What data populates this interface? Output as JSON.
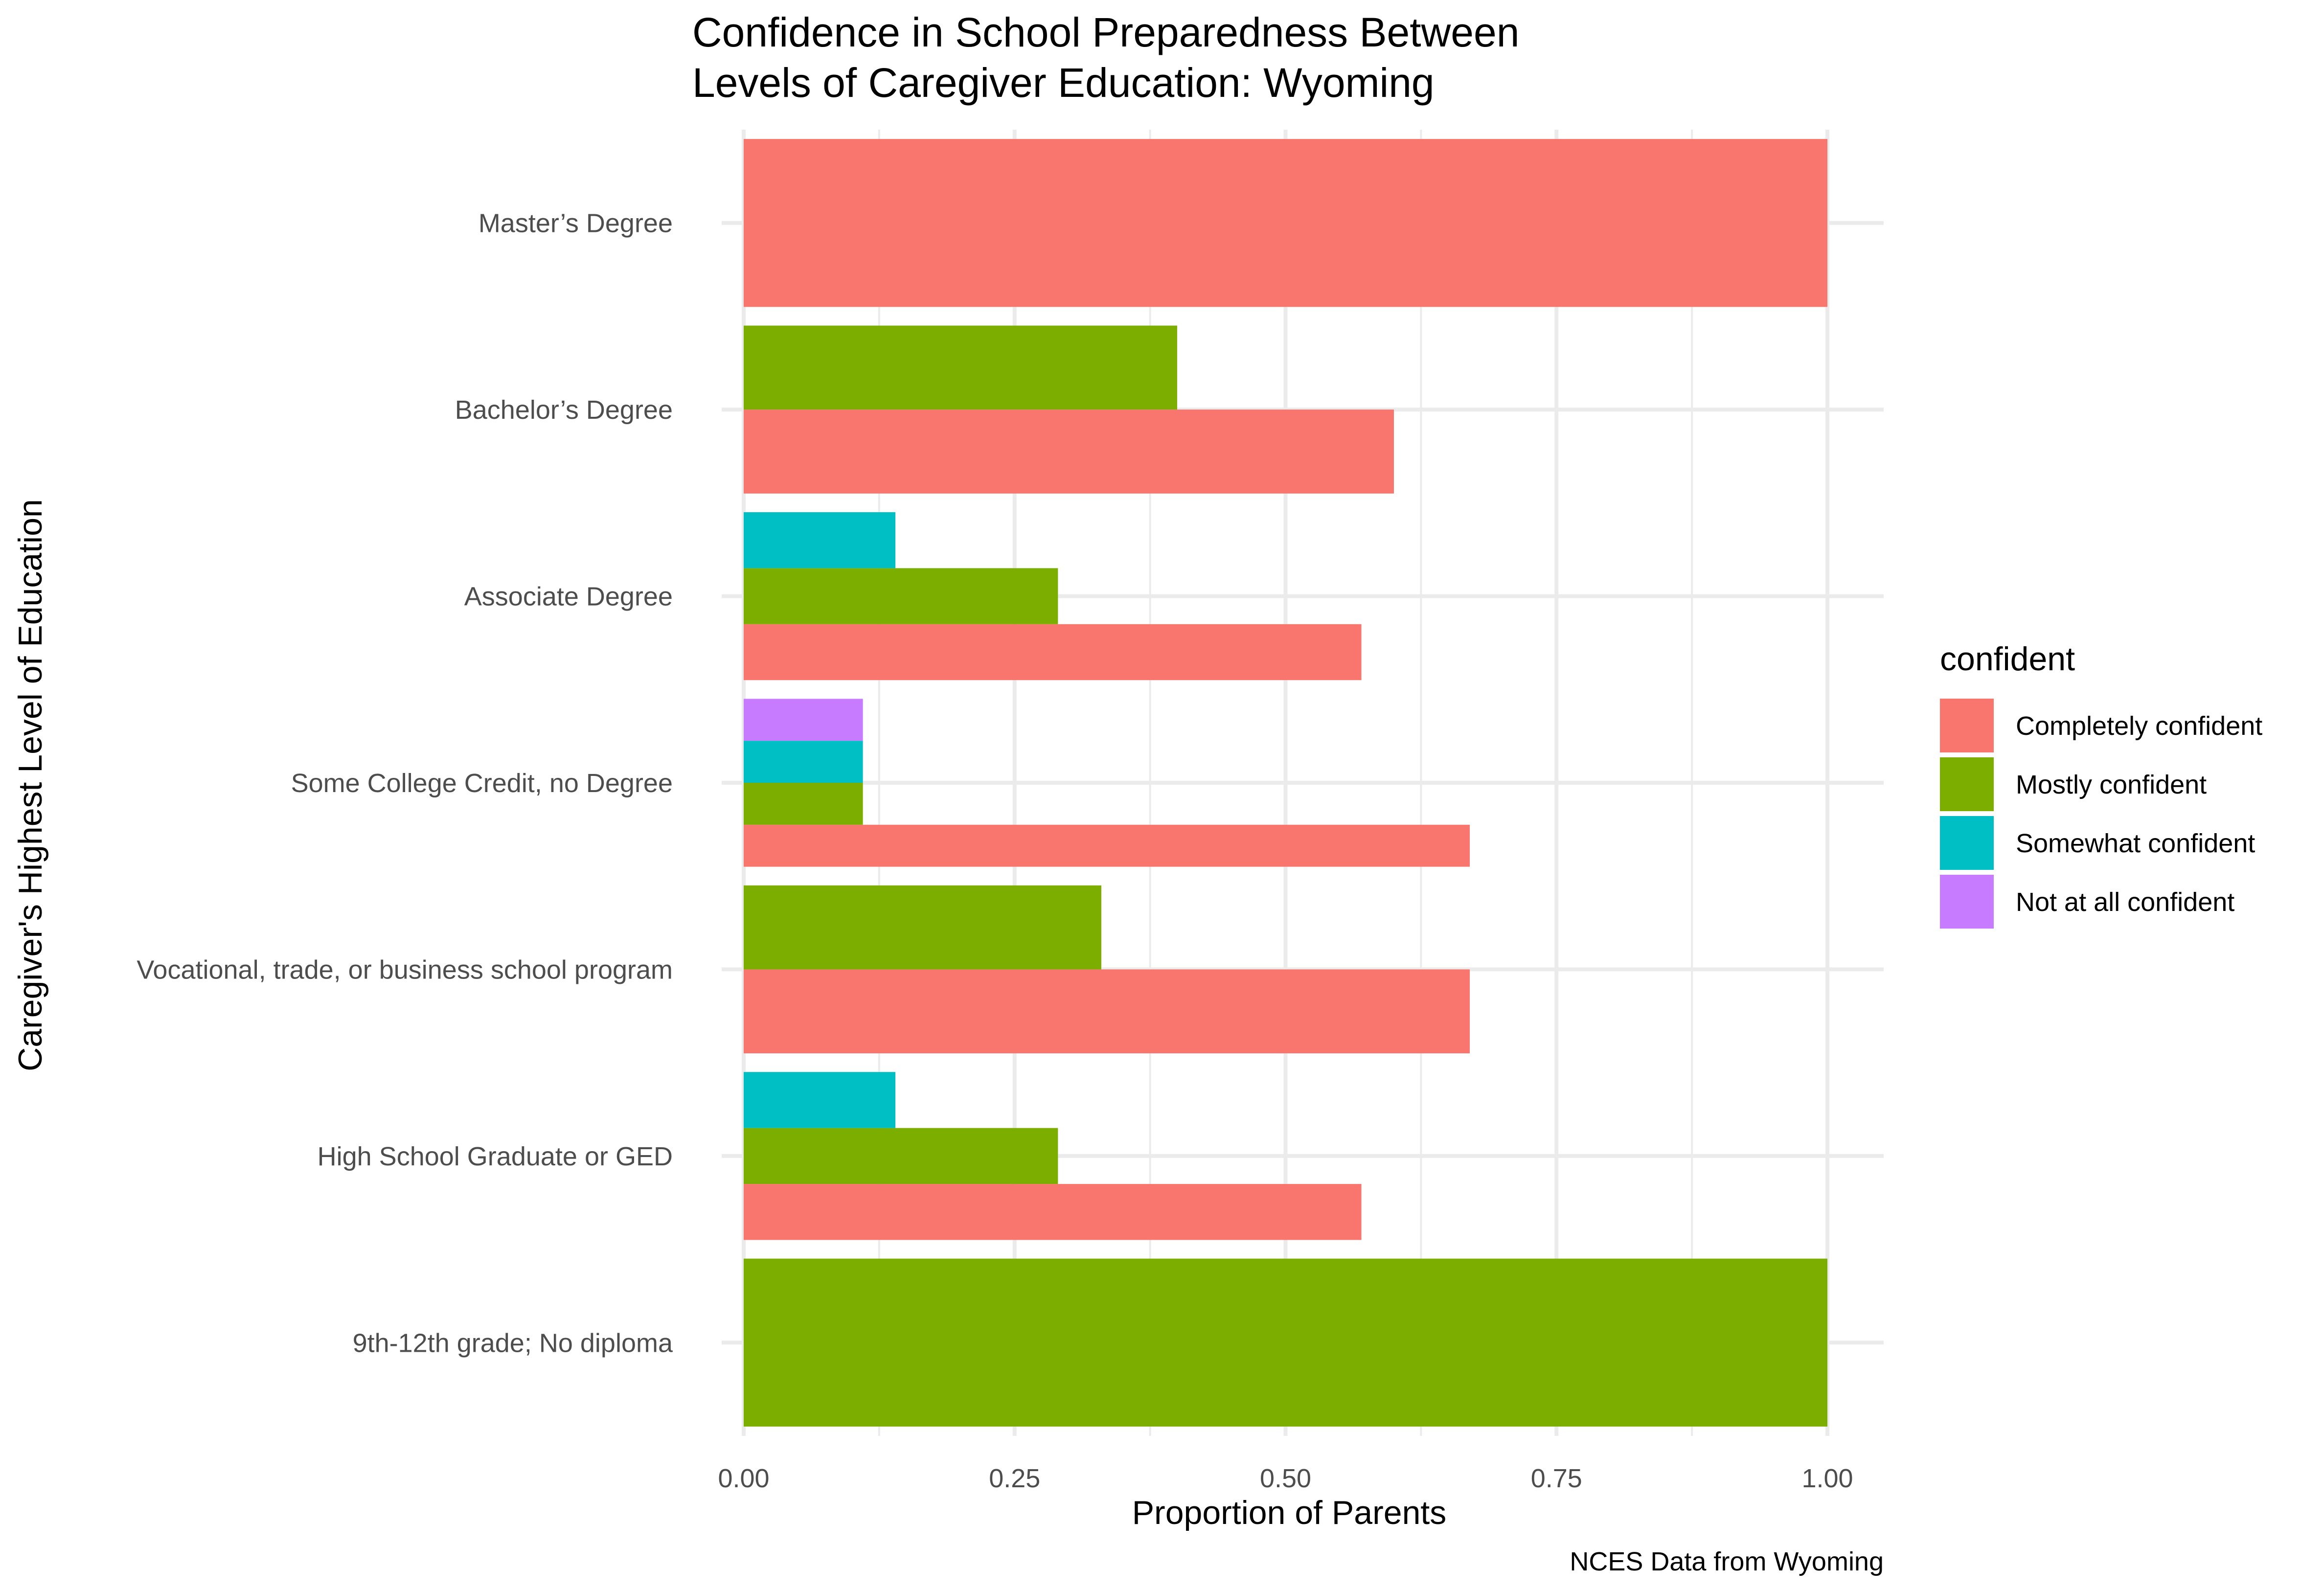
{
  "chart_data": {
    "type": "bar",
    "orientation": "horizontal",
    "position": "dodge",
    "title_lines": [
      "Confidence in School Preparedness Between",
      "Levels of Caregiver Education: Wyoming"
    ],
    "xlabel": "Proportion of Parents",
    "ylabel": "Caregiver's Highest Level of Education",
    "caption": "NCES Data from Wyoming",
    "xlim": [
      0,
      1.05
    ],
    "x_ticks": [
      0,
      0.25,
      0.5,
      0.75,
      1.0
    ],
    "x_tick_labels": [
      "0.00",
      "0.25",
      "0.50",
      "0.75",
      "1.00"
    ],
    "grid": true,
    "legend_position": "right",
    "legend_title": "confident",
    "categories": [
      "Master’s Degree",
      "Bachelor’s Degree",
      "Associate Degree",
      "Some College Credit, no Degree",
      "Vocational, trade, or business school program",
      "High School Graduate or GED",
      "9th-12th grade; No diploma"
    ],
    "series": [
      {
        "name": "Completely confident",
        "color": "#F8766D",
        "values": [
          1.0,
          0.6,
          0.57,
          0.67,
          0.67,
          0.57,
          null
        ]
      },
      {
        "name": "Mostly confident",
        "color": "#7CAE00",
        "values": [
          null,
          0.4,
          0.29,
          0.11,
          0.33,
          0.29,
          1.0
        ]
      },
      {
        "name": "Somewhat confident",
        "color": "#00BFC4",
        "values": [
          null,
          null,
          0.14,
          0.11,
          null,
          0.14,
          null
        ]
      },
      {
        "name": "Not at all confident",
        "color": "#C77CFF",
        "values": [
          null,
          null,
          null,
          0.11,
          null,
          null,
          null
        ]
      }
    ]
  }
}
